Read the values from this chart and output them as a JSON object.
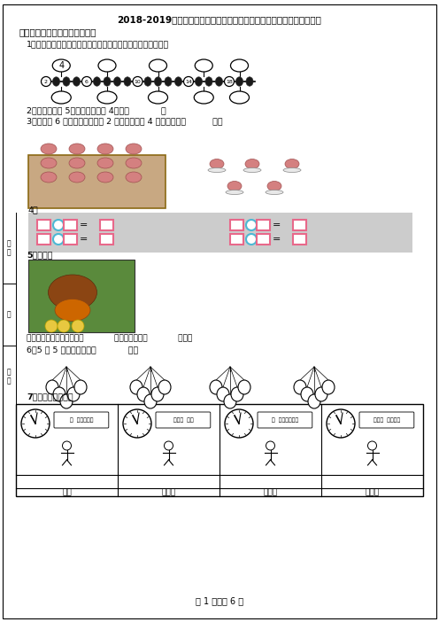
{
  "title": "2018-2019年北京市海淀区向东小学一年级上册数学模拟期末测试无答案",
  "section1": "一、想一想，填一填（填空题）",
  "q1_text": "1．把下列这些部分对应上合适的数（按从左到右的顺序填写）",
  "q1_top_numbers": [
    "4",
    "",
    "",
    "",
    ""
  ],
  "q2_text": "2．我的个位是 5，十位比个位少 4，我是            。",
  "q3_text": "3．红红有 6 张邮票，送给弟弟 2 张，送给妹妹 4 张，红红还有          张。",
  "q4_label": "4．",
  "q5_label": "5．看图。",
  "q5_text1": "母鸡与小鸡分成两组是按照            来分，也可以按            来分。",
  "q6_text": "6．5 个 5 个地数，一共有            个。",
  "q7_label": "7．看时钟判断时间",
  "table_headers": [
    "上学",
    "吃午饭",
    "写作业",
    "看电视"
  ],
  "table_clock_texts": [
    "（  ）时过一点",
    "快到（  ）时",
    "（  ）时过一点儿",
    "快到（  ）时了。"
  ],
  "page_footer": "第 1 页，共 6 页",
  "bg_color": "#ffffff",
  "text_color": "#000000",
  "bead_color": "#1a1a1a",
  "box_pink": "#e8688a",
  "box_blue": "#4db8d4",
  "eq_bg": "#d0d0d0",
  "bead_groups": [
    {
      "label": "2",
      "n_black": 3
    },
    {
      "label": "6",
      "n_black": 4
    },
    {
      "label": "10",
      "n_black": 4
    },
    {
      "label": "14",
      "n_black": 3
    },
    {
      "label": "18",
      "n_black": 2
    }
  ]
}
